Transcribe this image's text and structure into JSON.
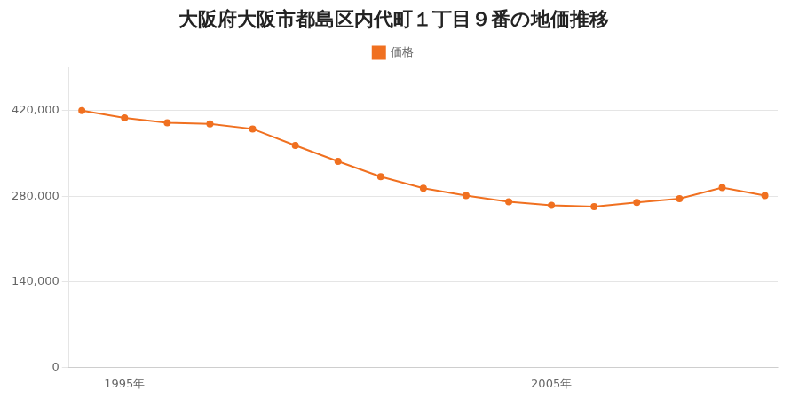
{
  "chart_data": {
    "type": "line",
    "title": "大阪府大阪市都島区内代町１丁目９番の地価推移",
    "x": [
      1994,
      1995,
      1996,
      1997,
      1998,
      1999,
      2000,
      2001,
      2002,
      2003,
      2004,
      2005,
      2006,
      2007,
      2008,
      2009,
      2010
    ],
    "series": [
      {
        "name": "価格",
        "color": "#f07020",
        "marker": "circle",
        "values": [
          420000,
          408000,
          400000,
          398000,
          390000,
          363000,
          337000,
          312000,
          293000,
          281000,
          271000,
          265000,
          263000,
          270000,
          276000,
          294000,
          281000
        ]
      }
    ],
    "xlim": [
      1993.7,
      2010.3
    ],
    "xticks": [
      {
        "value": 1995,
        "label": "1995年"
      },
      {
        "value": 2005,
        "label": "2005年"
      }
    ],
    "ylim": [
      0,
      490000
    ],
    "yticks": [
      0,
      {
        "value": 140000,
        "label": "140,000"
      },
      {
        "value": 280000,
        "label": "280,000"
      },
      {
        "value": 420000,
        "label": "420,000"
      }
    ],
    "grid": "y",
    "legend": "top"
  }
}
